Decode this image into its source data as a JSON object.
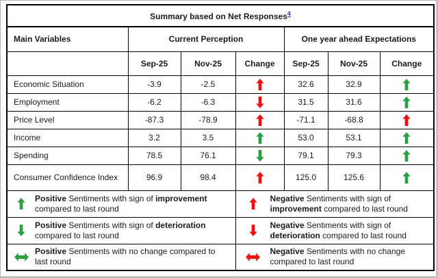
{
  "title": {
    "text": "Summary based on Net Responses",
    "footnote_ref": "4"
  },
  "colors": {
    "green": "#2e9e44",
    "red": "#ee1111",
    "link": "#2b2bd5",
    "grid": "#000000"
  },
  "header": {
    "main_col": "Main Variables",
    "groups": [
      {
        "label": "Current Perception"
      },
      {
        "label": "One year ahead Expectations"
      }
    ],
    "subcols": {
      "current": [
        "Sep-25",
        "Nov-25",
        "Change"
      ],
      "ahead": [
        "Sep-25",
        "Nov-25",
        "Change"
      ]
    }
  },
  "rows": [
    {
      "label": "Economic Situation",
      "current": {
        "sep": "-3.9",
        "nov": "-2.5",
        "change": {
          "dir": "up",
          "color": "red"
        }
      },
      "ahead": {
        "sep": "32.6",
        "nov": "32.9",
        "change": {
          "dir": "up",
          "color": "green"
        }
      }
    },
    {
      "label": "Employment",
      "current": {
        "sep": "-6.2",
        "nov": "-6.3",
        "change": {
          "dir": "down",
          "color": "red"
        }
      },
      "ahead": {
        "sep": "31.5",
        "nov": "31.6",
        "change": {
          "dir": "up",
          "color": "green"
        }
      }
    },
    {
      "label": "Price Level",
      "current": {
        "sep": "-87.3",
        "nov": "-78.9",
        "change": {
          "dir": "up",
          "color": "red"
        }
      },
      "ahead": {
        "sep": "-71.1",
        "nov": "-68.8",
        "change": {
          "dir": "up",
          "color": "red"
        }
      }
    },
    {
      "label": "Income",
      "current": {
        "sep": "3.2",
        "nov": "3.5",
        "change": {
          "dir": "up",
          "color": "green"
        }
      },
      "ahead": {
        "sep": "53.0",
        "nov": "53.1",
        "change": {
          "dir": "up",
          "color": "green"
        }
      }
    },
    {
      "label": "Spending",
      "current": {
        "sep": "78.5",
        "nov": "76.1",
        "change": {
          "dir": "down",
          "color": "green"
        }
      },
      "ahead": {
        "sep": "79.1",
        "nov": "79.3",
        "change": {
          "dir": "up",
          "color": "green"
        }
      }
    },
    {
      "label": "Consumer Confidence Index",
      "current": {
        "sep": "96.9",
        "nov": "98.4",
        "change": {
          "dir": "up",
          "color": "red"
        }
      },
      "ahead": {
        "sep": "125.0",
        "nov": "125.6",
        "change": {
          "dir": "up",
          "color": "green"
        }
      }
    }
  ],
  "legend": {
    "left": [
      {
        "icon": {
          "dir": "up",
          "color": "green"
        },
        "segments": [
          {
            "t": "Positive",
            "b": true
          },
          {
            "t": " Sentiments with sign of ",
            "b": false
          },
          {
            "t": "improvement",
            "b": true
          },
          {
            "t": " compared to last round",
            "b": false
          }
        ]
      },
      {
        "icon": {
          "dir": "down",
          "color": "green"
        },
        "segments": [
          {
            "t": "Positive",
            "b": true
          },
          {
            "t": " Sentiments with sign of ",
            "b": false
          },
          {
            "t": "deterioration",
            "b": true
          },
          {
            "t": " compared to last round",
            "b": false
          }
        ]
      },
      {
        "icon": {
          "dir": "leftright",
          "color": "green"
        },
        "segments": [
          {
            "t": "Positive",
            "b": true
          },
          {
            "t": " Sentiments with no change compared to last round",
            "b": false
          }
        ]
      }
    ],
    "right": [
      {
        "icon": {
          "dir": "up",
          "color": "red"
        },
        "segments": [
          {
            "t": "Negative",
            "b": true
          },
          {
            "t": " Sentiments with sign of ",
            "b": false
          },
          {
            "t": "improvement",
            "b": true
          },
          {
            "t": " compared to last round",
            "b": false
          }
        ]
      },
      {
        "icon": {
          "dir": "down",
          "color": "red"
        },
        "segments": [
          {
            "t": "Negative",
            "b": true
          },
          {
            "t": " Sentiments with sign of ",
            "b": false
          },
          {
            "t": "deterioration",
            "b": true
          },
          {
            "t": " compared to last round",
            "b": false
          }
        ]
      },
      {
        "icon": {
          "dir": "leftright",
          "color": "red"
        },
        "segments": [
          {
            "t": "Negative",
            "b": true
          },
          {
            "t": " Sentiments with no change compared to last round",
            "b": false
          }
        ]
      }
    ]
  }
}
